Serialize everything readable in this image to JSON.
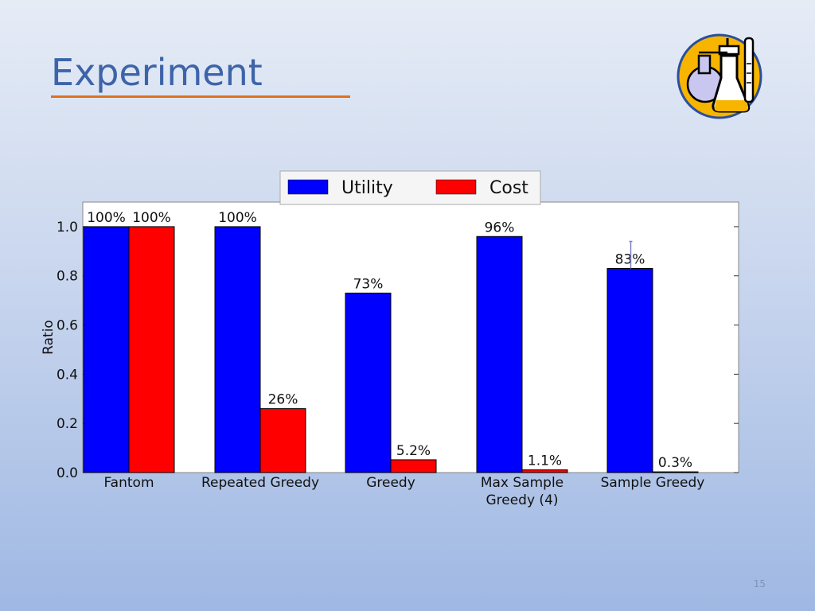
{
  "slide": {
    "title": "Experiment",
    "page_number": "15",
    "logo_icon": "chemistry-flasks-icon"
  },
  "chart_data": {
    "type": "bar",
    "categories": [
      "Fantom",
      "Repeated Greedy",
      "Greedy",
      "Max Sample\nGreedy (4)",
      "Sample Greedy"
    ],
    "series": [
      {
        "name": "Utility",
        "color": "#0000ff",
        "values": [
          1.0,
          1.0,
          0.73,
          0.96,
          0.83
        ],
        "labels": [
          "100%",
          "100%",
          "73%",
          "96%",
          "83%"
        ]
      },
      {
        "name": "Cost",
        "color": "#ff0000",
        "values": [
          1.0,
          0.26,
          0.052,
          0.011,
          0.003
        ],
        "labels": [
          "100%",
          "26%",
          "5.2%",
          "1.1%",
          "0.3%"
        ]
      }
    ],
    "error_bars": {
      "series": "Utility",
      "category_index": 4,
      "low": 0.83,
      "high": 0.94
    },
    "ylabel": "Ratio",
    "xlabel": "",
    "ylim": [
      0,
      1.1
    ],
    "yticks": [
      "0.0",
      "0.2",
      "0.4",
      "0.6",
      "0.8",
      "1.0"
    ],
    "legend_position": "top-center",
    "grid": false
  }
}
